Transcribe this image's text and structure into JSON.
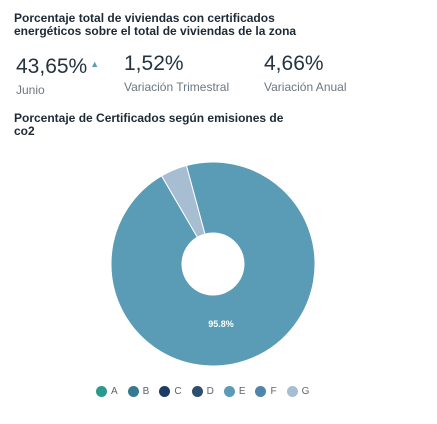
{
  "header": {
    "title": "Porcentaje total de viviendas con certificados energéticos sobre el total de viviendas de la zona"
  },
  "stats": [
    {
      "value": "43,65%",
      "label": "Junio",
      "trend": "up"
    },
    {
      "value": "1,52%",
      "label": "Variación Trimestral"
    },
    {
      "value": "4,66%",
      "label": "Variación Anual"
    }
  ],
  "chart_title": "Porcentaje de Certificados según emisiones de co2",
  "chart_data": {
    "type": "pie",
    "title": "Porcentaje de Certificados según emisiones de co2",
    "categories": [
      "A",
      "B",
      "C",
      "D",
      "E",
      "F",
      "G"
    ],
    "values": [
      0,
      0,
      0,
      0,
      95.8,
      0,
      4.2
    ],
    "colors": [
      "#2a9a91",
      "#367a92",
      "#1c3c66",
      "#2b4f6d",
      "#5a9bb5",
      "#4f85ad",
      "#a6bdd2"
    ],
    "data_labels": [
      "",
      "",
      "",
      "",
      "95.8%",
      "",
      ""
    ],
    "donut": true,
    "legend_position": "bottom"
  }
}
